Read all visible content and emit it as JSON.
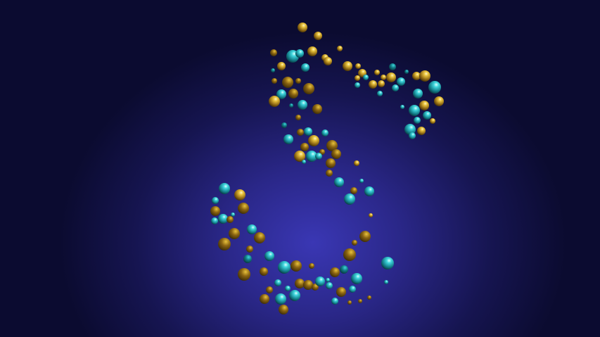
{
  "scene": {
    "background_center": "#3a37b4",
    "background_edge": "#0b0b30",
    "sphere_colors": {
      "gold": [
        "#fff6c2",
        "#e8c23c",
        "#8a6412",
        "#3a2a06"
      ],
      "teal": [
        "#d9ffff",
        "#3fd6dd",
        "#127a86",
        "#06343b"
      ]
    }
  }
}
